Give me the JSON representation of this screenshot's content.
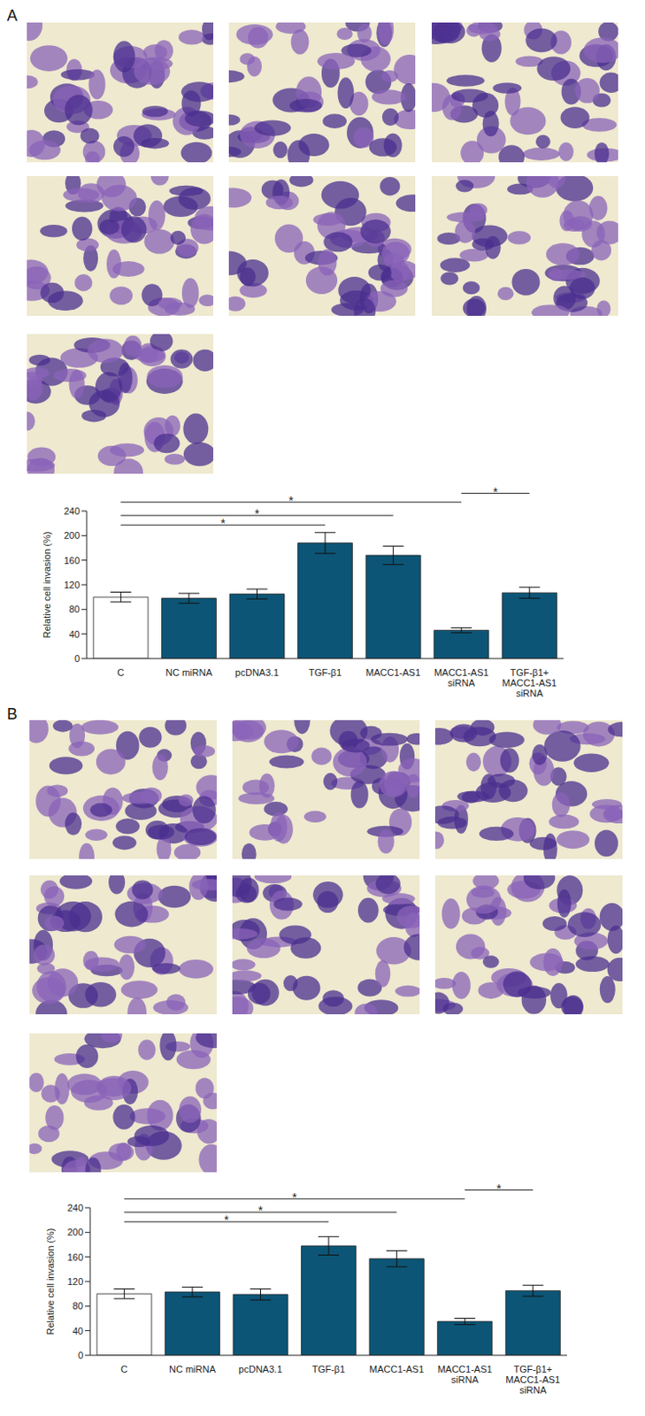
{
  "chart_data": [
    {
      "type": "bar",
      "annotations": [
        {
          "text": "A"
        },
        {
          "text": "*",
          "from": "C",
          "to": "MACC1-AS1 siRNA"
        },
        {
          "text": "*",
          "from": "C",
          "to": "MACC1-AS1"
        },
        {
          "text": "*",
          "from": "C",
          "to": "TGF-β1"
        },
        {
          "text": "*",
          "from": "MACC1-AS1 siRNA",
          "to": "TGF-β1+MACC1-AS1 siRNA"
        }
      ],
      "y_label": "Relative cell invasion (%)",
      "categories": [
        "C",
        "NC miRNA",
        "pcDNA3.1",
        "TGF-β1",
        "MACC1-AS1",
        "MACC1-AS1 siRNA",
        "TGF-β1+MACC1-AS1 siRNA"
      ],
      "values": [
        100,
        98,
        105,
        188,
        168,
        46,
        107
      ],
      "errors": [
        8,
        8,
        8,
        17,
        15,
        4,
        9
      ],
      "colors": [
        "#ffffff",
        "#0c5576",
        "#0c5576",
        "#0c5576",
        "#0c5576",
        "#0c5576",
        "#0c5576"
      ],
      "ylim": [
        0,
        240
      ],
      "yticks": [
        0,
        40,
        80,
        120,
        160,
        200,
        240
      ],
      "grid": false
    },
    {
      "type": "bar",
      "annotations": [
        {
          "text": "B"
        },
        {
          "text": "*",
          "from": "C",
          "to": "MACC1-AS1 siRNA"
        },
        {
          "text": "*",
          "from": "C",
          "to": "MACC1-AS1"
        },
        {
          "text": "*",
          "from": "C",
          "to": "TGF-β1"
        },
        {
          "text": "*",
          "from": "MACC1-AS1 siRNA",
          "to": "TGF-β1+MACC1-AS1 siRNA"
        }
      ],
      "y_label": "Relative cell invasion (%)",
      "categories": [
        "C",
        "NC miRNA",
        "pcDNA3.1",
        "TGF-β1",
        "MACC1-AS1",
        "MACC1-AS1 siRNA",
        "TGF-β1+MACC1-AS1 siRNA"
      ],
      "values": [
        100,
        103,
        99,
        178,
        157,
        55,
        105
      ],
      "errors": [
        8,
        8,
        9,
        15,
        13,
        5,
        9
      ],
      "colors": [
        "#ffffff",
        "#0c5576",
        "#0c5576",
        "#0c5576",
        "#0c5576",
        "#0c5576",
        "#0c5576"
      ],
      "ylim": [
        0,
        240
      ],
      "yticks": [
        0,
        40,
        80,
        120,
        160,
        200,
        240
      ],
      "grid": false
    }
  ]
}
